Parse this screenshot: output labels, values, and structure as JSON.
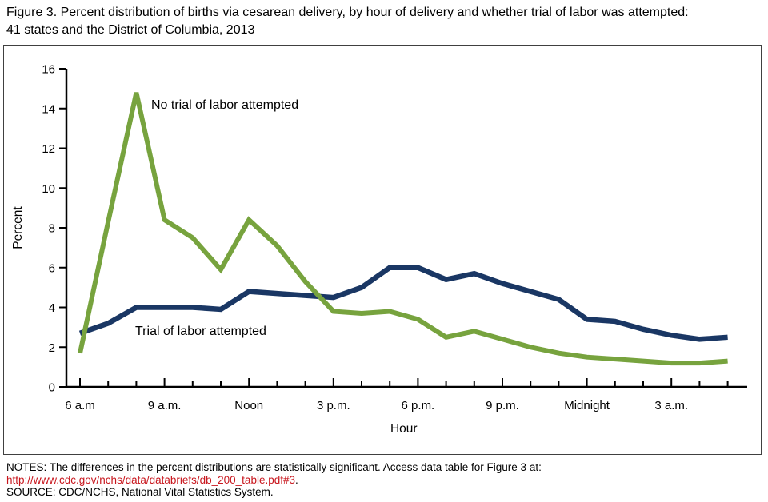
{
  "title": {
    "line1": "Figure 3. Percent distribution of births via cesarean delivery, by hour of delivery and whether trial of labor was attempted:",
    "line2": "41 states and the District of Columbia, 2013"
  },
  "notes": {
    "line1": "NOTES: The differences in the percent distributions are statistically significant. Access data table for Figure 3 at:",
    "link": "http://www.cdc.gov/nchs/data/databriefs/db_200_table.pdf#3",
    "link_suffix": ".",
    "link_color": "#C8161D",
    "source": "SOURCE: CDC/NCHS, National Vital Statistics System."
  },
  "chart_data": {
    "type": "line",
    "title": "Percent distribution of births via cesarean delivery, by hour of delivery and whether trial of labor was attempted",
    "xlabel": "Hour",
    "ylabel": "Percent",
    "ylim": [
      0,
      16
    ],
    "ytick_step": 2,
    "grid": false,
    "legend_position": "inline-annotations",
    "x": [
      "6 a.m.",
      "7 a.m.",
      "8 a.m.",
      "9 a.m.",
      "10 a.m.",
      "11 a.m.",
      "Noon",
      "1 p.m.",
      "2 p.m.",
      "3 p.m.",
      "4 p.m.",
      "5 p.m.",
      "6 p.m.",
      "7 p.m.",
      "8 p.m.",
      "9 p.m.",
      "10 p.m.",
      "11 p.m.",
      "Midnight",
      "1 a.m.",
      "2 a.m.",
      "3 a.m.",
      "4 a.m.",
      "5 a.m."
    ],
    "x_tick_labels": [
      {
        "index": 0,
        "label": "6 a.m"
      },
      {
        "index": 3,
        "label": "9 a.m."
      },
      {
        "index": 6,
        "label": "Noon"
      },
      {
        "index": 9,
        "label": "3 p.m."
      },
      {
        "index": 12,
        "label": "6 p.m."
      },
      {
        "index": 15,
        "label": "9 p.m."
      },
      {
        "index": 18,
        "label": "Midnight"
      },
      {
        "index": 21,
        "label": "3 a.m."
      }
    ],
    "series": [
      {
        "name": "No trial of labor attempted",
        "color": "#77A33E",
        "values": [
          1.7,
          8.3,
          14.8,
          8.4,
          7.5,
          5.9,
          8.4,
          7.1,
          5.3,
          3.8,
          3.7,
          3.8,
          3.4,
          2.5,
          2.8,
          2.4,
          2.0,
          1.7,
          1.5,
          1.4,
          1.3,
          1.2,
          1.2,
          1.3
        ]
      },
      {
        "name": "Trial of labor attempted",
        "color": "#1A3764",
        "values": [
          2.7,
          3.2,
          4.0,
          4.0,
          4.0,
          3.9,
          4.8,
          4.7,
          4.6,
          4.5,
          5.0,
          6.0,
          6.0,
          5.4,
          5.7,
          5.2,
          4.8,
          4.4,
          3.4,
          3.3,
          2.9,
          2.6,
          2.4,
          2.5
        ]
      }
    ]
  }
}
